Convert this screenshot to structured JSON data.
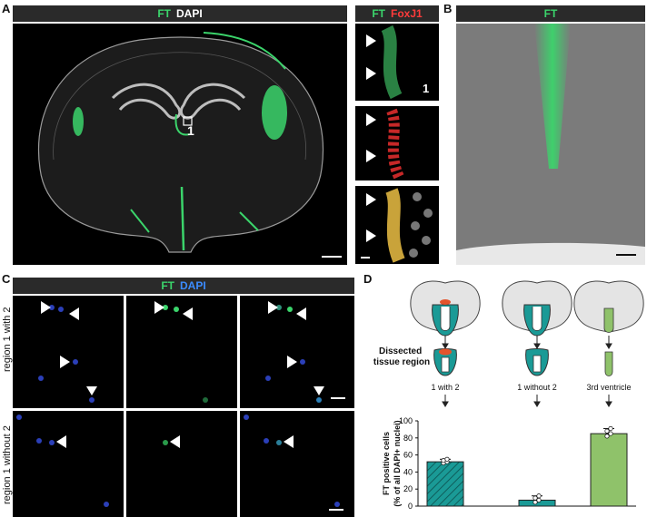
{
  "panels": {
    "A": "A",
    "B": "B",
    "C": "C",
    "D": "D"
  },
  "panelA": {
    "header_ft": "FT",
    "header_dapi": "DAPI",
    "region_marker": "1",
    "inset_header_ft": "FT",
    "inset_header_foxj1": "FoxJ1",
    "inset_marker": "1"
  },
  "panelB": {
    "header_ft": "FT"
  },
  "panelC": {
    "header_ft": "FT",
    "header_dapi": "DAPI",
    "row1_label": "region 1 with 2",
    "row2_label": "region 1 without 2"
  },
  "panelD": {
    "dissected_label_line1": "Dissected",
    "dissected_label_line2": "tissue region",
    "categories": [
      "1 with 2",
      "1 without 2",
      "3rd ventricle"
    ],
    "ylabel_line1": "FT positive cells",
    "ylabel_line2": "(% of all DAPI+ nuclei)",
    "yticks": [
      "0",
      "20",
      "40",
      "60",
      "80",
      "100"
    ]
  },
  "colors": {
    "ft_green": "#3bd46b",
    "foxj1_red": "#ff3b3b",
    "dapi_blue": "#3b8cff",
    "teal": "#1a9a96",
    "light_green": "#8fc26a"
  },
  "chart_data": {
    "type": "bar",
    "categories": [
      "1 with 2",
      "1 without 2",
      "3rd ventricle"
    ],
    "values": [
      52,
      7,
      85
    ],
    "errors": [
      3,
      5,
      6
    ],
    "ylabel": "FT positive cells (% of all DAPI+ nuclei)",
    "ylim": [
      0,
      100
    ],
    "yticks": [
      0,
      20,
      40,
      60,
      80,
      100
    ],
    "bar_colors": [
      "#1a9a96",
      "#1a9a96",
      "#8fc26a"
    ],
    "bar_patterns": [
      "hatched",
      "solid",
      "solid"
    ]
  }
}
